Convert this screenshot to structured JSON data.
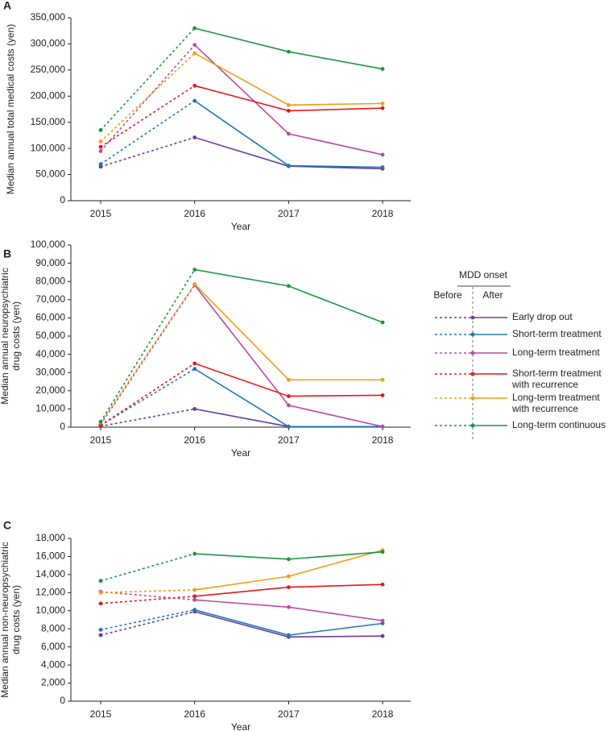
{
  "chart_data": [
    {
      "type": "line",
      "panel": "A",
      "xlabel": "Year",
      "ylabel": [
        "Median annual total medical costs (yen)"
      ],
      "categories": [
        "2015",
        "2016",
        "2017",
        "2018"
      ],
      "ylim": [
        0,
        350000
      ],
      "yticks": [
        0,
        {
          "value": 50000,
          "label": "50,000"
        },
        {
          "value": 100000,
          "label": "100,000"
        },
        {
          "value": 150000,
          "label": "150,000"
        },
        {
          "value": 200000,
          "label": "200,000"
        },
        {
          "value": 250000,
          "label": "250,000"
        },
        {
          "value": 300000,
          "label": "300,000"
        },
        {
          "value": 350000,
          "label": "350,000"
        }
      ],
      "legend": {
        "title": "MDD onset",
        "before": "Before",
        "after": "After"
      },
      "series": [
        {
          "name": "Early drop out",
          "color": "#6a3d9a",
          "values": [
            65000,
            121000,
            66000,
            61000
          ]
        },
        {
          "name": "Short-term treatment",
          "color": "#1f78b4",
          "values": [
            70000,
            191000,
            67000,
            64000
          ]
        },
        {
          "name": "Long-term treatment",
          "color": "#b94aa8",
          "values": [
            95000,
            298000,
            128000,
            88000
          ]
        },
        {
          "name": "Short-term treatment with recurrence",
          "color": "#e31a1c",
          "values": [
            103000,
            220000,
            172000,
            177000
          ]
        },
        {
          "name": "Long-term treatment with recurrence",
          "color": "#f39c12",
          "values": [
            113000,
            282000,
            183000,
            186000
          ]
        },
        {
          "name": "Long-term continuous",
          "color": "#1a9641",
          "values": [
            135000,
            330000,
            285000,
            252000
          ]
        }
      ]
    },
    {
      "type": "line",
      "panel": "B",
      "xlabel": "Year",
      "ylabel": [
        "Median annual neuropsychiatric",
        "drug costs (yen)"
      ],
      "categories": [
        "2015",
        "2016",
        "2017",
        "2018"
      ],
      "ylim": [
        0,
        100000
      ],
      "yticks": [
        0,
        {
          "value": 10000,
          "label": "10,000"
        },
        {
          "value": 20000,
          "label": "20,000"
        },
        {
          "value": 30000,
          "label": "30,000"
        },
        {
          "value": 40000,
          "label": "40,000"
        },
        {
          "value": 50000,
          "label": "50,000"
        },
        {
          "value": 60000,
          "label": "60,000"
        },
        {
          "value": 70000,
          "label": "70,000"
        },
        {
          "value": 80000,
          "label": "80,000"
        },
        {
          "value": 90000,
          "label": "90,000"
        },
        {
          "value": 100000,
          "label": "100,000"
        }
      ],
      "series": [
        {
          "color": "#6a3d9a",
          "values": [
            500,
            10000,
            300,
            300
          ]
        },
        {
          "color": "#1f78b4",
          "values": [
            1000,
            32000,
            300,
            300
          ]
        },
        {
          "color": "#b94aa8",
          "values": [
            1500,
            78000,
            12000,
            300
          ]
        },
        {
          "color": "#e31a1c",
          "values": [
            1000,
            35000,
            17000,
            17500
          ]
        },
        {
          "color": "#f39c12",
          "values": [
            2500,
            78500,
            26000,
            26000
          ]
        },
        {
          "color": "#1a9641",
          "values": [
            3000,
            86500,
            77500,
            57500
          ]
        }
      ]
    },
    {
      "type": "line",
      "panel": "C",
      "xlabel": "Year",
      "ylabel": [
        "Median annual non-neuropsychiatric",
        "drug costs (yen)"
      ],
      "categories": [
        "2015",
        "2016",
        "2017",
        "2018"
      ],
      "ylim": [
        0,
        18000
      ],
      "yticks": [
        0,
        {
          "value": 2000,
          "label": "2,000"
        },
        {
          "value": 4000,
          "label": "4,000"
        },
        {
          "value": 6000,
          "label": "6,000"
        },
        {
          "value": 8000,
          "label": "8,000"
        },
        {
          "value": 10000,
          "label": "10,000"
        },
        {
          "value": 12000,
          "label": "12,000"
        },
        {
          "value": 14000,
          "label": "14,000"
        },
        {
          "value": 16000,
          "label": "16,000"
        },
        {
          "value": 18000,
          "label": "18,000"
        }
      ],
      "series": [
        {
          "color": "#6a3d9a",
          "values": [
            7300,
            9900,
            7100,
            7200
          ]
        },
        {
          "color": "#1f78b4",
          "values": [
            7900,
            10100,
            7300,
            8600
          ]
        },
        {
          "color": "#b94aa8",
          "values": [
            12100,
            11200,
            10400,
            8900
          ]
        },
        {
          "color": "#e31a1c",
          "values": [
            10800,
            11600,
            12600,
            12900
          ]
        },
        {
          "color": "#f39c12",
          "values": [
            12000,
            12300,
            13800,
            16700
          ]
        },
        {
          "color": "#1a9641",
          "values": [
            13300,
            16300,
            15700,
            16500
          ]
        }
      ]
    }
  ]
}
